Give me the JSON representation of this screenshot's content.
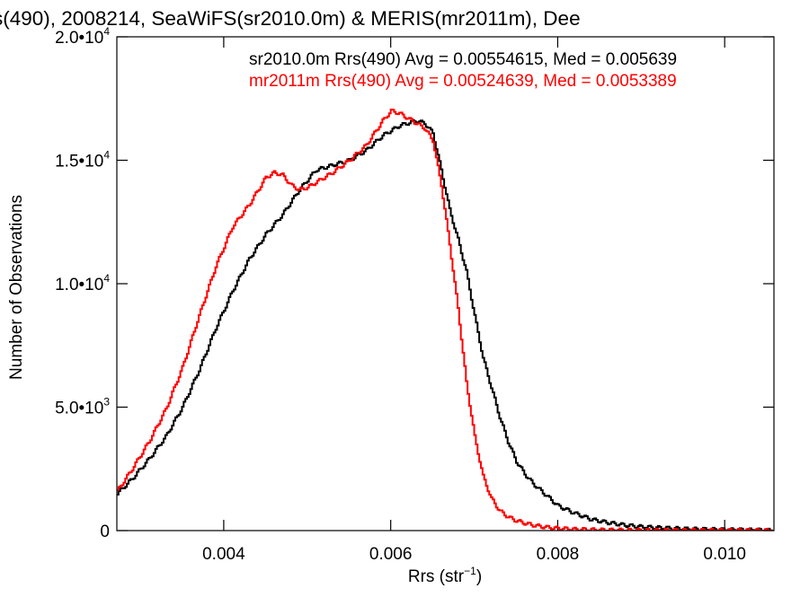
{
  "chart_data": {
    "type": "line",
    "title": "s(490), 2008214, SeaWiFS(sr2010.0m) & MERIS(mr2011m), Dee",
    "xlabel_main": "Rrs (str",
    "xlabel_sup": "−1",
    "xlabel_end": ")",
    "ylabel": "Number of Observations",
    "xlim": [
      0.00272,
      0.01059
    ],
    "ylim": [
      0,
      20000
    ],
    "x_ticks": [
      {
        "value": 0.004,
        "label": "0.004"
      },
      {
        "value": 0.006,
        "label": "0.006"
      },
      {
        "value": 0.008,
        "label": "0.008"
      },
      {
        "value": 0.01,
        "label": "0.010"
      }
    ],
    "y_ticks": [
      {
        "value": 0,
        "mant": "0",
        "exp": ""
      },
      {
        "value": 5000,
        "mant": "5.0•10",
        "exp": "3"
      },
      {
        "value": 10000,
        "mant": "1.0•10",
        "exp": "4"
      },
      {
        "value": 15000,
        "mant": "1.5•10",
        "exp": "4"
      },
      {
        "value": 20000,
        "mant": "2.0•10",
        "exp": "4"
      }
    ],
    "grid": false,
    "legend_position": "top-right",
    "series": [
      {
        "name": "sr2010.0m Rrs(490) Avg = 0.00554615, Med = 0.005639",
        "color": "#000000",
        "x": [
          0.00272,
          0.0029,
          0.0031,
          0.0033,
          0.0035,
          0.0037,
          0.0039,
          0.0041,
          0.0043,
          0.0045,
          0.0047,
          0.0049,
          0.0051,
          0.0053,
          0.0055,
          0.0057,
          0.0059,
          0.0061,
          0.0063,
          0.0064,
          0.0065,
          0.0066,
          0.0067,
          0.0068,
          0.0069,
          0.007,
          0.0071,
          0.0072,
          0.0073,
          0.0074,
          0.0075,
          0.0076,
          0.0077,
          0.0078,
          0.0079,
          0.008,
          0.0082,
          0.0084,
          0.0086,
          0.0088,
          0.009,
          0.0093,
          0.0096,
          0.01,
          0.0104,
          0.01059
        ],
        "y": [
          1500,
          2100,
          2900,
          3800,
          5000,
          6500,
          8200,
          9700,
          11000,
          12000,
          12800,
          13800,
          14600,
          14800,
          15000,
          15400,
          16000,
          16400,
          16600,
          16500,
          16100,
          14600,
          13000,
          11800,
          10500,
          8700,
          7000,
          5800,
          4600,
          3600,
          2800,
          2300,
          1900,
          1600,
          1300,
          1000,
          700,
          450,
          320,
          220,
          150,
          100,
          60,
          35,
          20,
          10
        ]
      },
      {
        "name": "mr2011m Rrs(490) Avg = 0.00524639, Med = 0.0053389",
        "color": "#ff0000",
        "x": [
          0.00272,
          0.0029,
          0.0031,
          0.0033,
          0.0035,
          0.0037,
          0.0039,
          0.0041,
          0.0043,
          0.0045,
          0.0046,
          0.0047,
          0.0048,
          0.0049,
          0.005,
          0.0051,
          0.0053,
          0.0055,
          0.0057,
          0.0059,
          0.006,
          0.0061,
          0.0062,
          0.0063,
          0.0064,
          0.0065,
          0.0066,
          0.0067,
          0.0068,
          0.0069,
          0.007,
          0.0071,
          0.0072,
          0.0073,
          0.0074,
          0.0075,
          0.0076,
          0.0077,
          0.0078,
          0.0079,
          0.008,
          0.0082,
          0.0085,
          0.009,
          0.01,
          0.01059
        ],
        "y": [
          1600,
          2500,
          3600,
          4900,
          6600,
          8700,
          10700,
          12300,
          13200,
          14300,
          14500,
          14400,
          14000,
          13800,
          13900,
          14100,
          14500,
          15000,
          15600,
          16600,
          17000,
          16900,
          16700,
          16500,
          16300,
          15800,
          14000,
          11600,
          9000,
          6000,
          3800,
          2200,
          1300,
          800,
          550,
          400,
          300,
          220,
          160,
          120,
          90,
          50,
          25,
          10,
          5,
          3
        ]
      }
    ]
  }
}
